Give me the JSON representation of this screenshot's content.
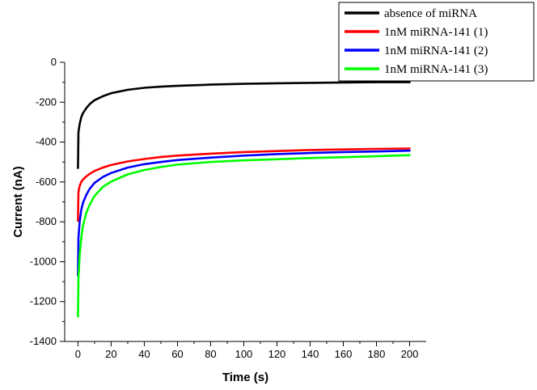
{
  "chart_data": {
    "type": "line",
    "title": "",
    "xlabel": "Time (s)",
    "ylabel": "Current (nA)",
    "xlim": [
      -8,
      210
    ],
    "ylim": [
      -1400,
      0
    ],
    "xticks": [
      0,
      20,
      40,
      60,
      80,
      100,
      120,
      140,
      160,
      180,
      200
    ],
    "yticks": [
      0,
      -200,
      -400,
      -600,
      -800,
      -1000,
      -1200,
      -1400
    ],
    "grid": false,
    "legend_position": "top-right",
    "series": [
      {
        "name": "absence of miRNA",
        "color": "#000000",
        "x": [
          0,
          0.3,
          1,
          2,
          3,
          5,
          7,
          10,
          15,
          20,
          30,
          40,
          50,
          60,
          80,
          100,
          120,
          140,
          160,
          180,
          200
        ],
        "y": [
          -530,
          -350,
          -310,
          -275,
          -255,
          -230,
          -210,
          -190,
          -170,
          -155,
          -138,
          -128,
          -122,
          -118,
          -112,
          -108,
          -105,
          -103,
          -101,
          -100,
          -100
        ]
      },
      {
        "name": "1nM miRNA-141 (1)",
        "color": "#ff0000",
        "x": [
          0,
          0.3,
          1,
          2,
          3,
          5,
          7,
          10,
          15,
          20,
          30,
          40,
          50,
          60,
          80,
          100,
          120,
          140,
          160,
          180,
          200
        ],
        "y": [
          -795,
          -650,
          -620,
          -600,
          -588,
          -572,
          -560,
          -545,
          -528,
          -515,
          -497,
          -485,
          -475,
          -468,
          -458,
          -450,
          -445,
          -440,
          -437,
          -434,
          -432
        ]
      },
      {
        "name": "1nM miRNA-141 (2)",
        "color": "#0000ff",
        "x": [
          0,
          0.3,
          1,
          2,
          3,
          5,
          7,
          10,
          15,
          20,
          30,
          40,
          50,
          60,
          80,
          100,
          120,
          140,
          160,
          180,
          200
        ],
        "y": [
          -1070,
          -880,
          -800,
          -740,
          -705,
          -665,
          -635,
          -605,
          -575,
          -555,
          -528,
          -511,
          -500,
          -490,
          -478,
          -468,
          -460,
          -455,
          -450,
          -447,
          -443
        ]
      },
      {
        "name": "1nM miRNA-141 (3)",
        "color": "#00ff00",
        "x": [
          0,
          0.3,
          1,
          2,
          3,
          5,
          7,
          10,
          15,
          20,
          30,
          40,
          50,
          60,
          80,
          100,
          120,
          140,
          160,
          180,
          200
        ],
        "y": [
          -1275,
          -1080,
          -970,
          -880,
          -820,
          -755,
          -715,
          -670,
          -625,
          -598,
          -562,
          -540,
          -525,
          -513,
          -500,
          -492,
          -486,
          -480,
          -476,
          -471,
          -466
        ]
      }
    ]
  }
}
